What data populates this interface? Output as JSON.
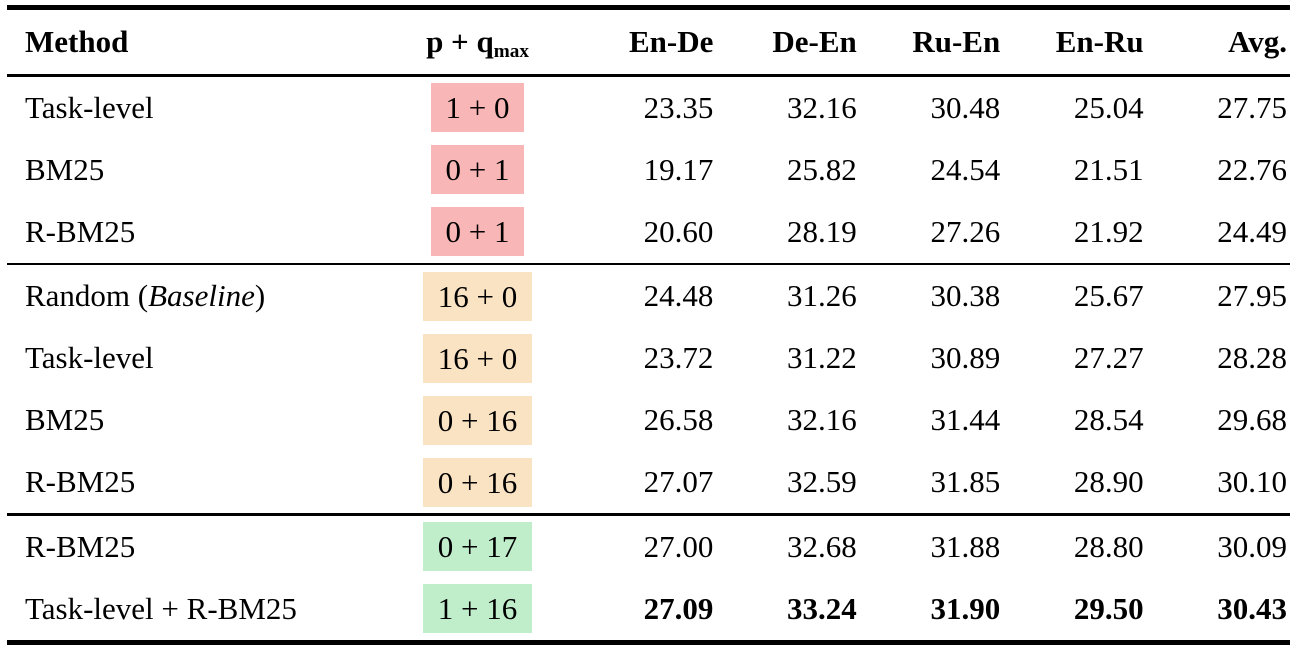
{
  "table": {
    "columns": {
      "method": "Method",
      "pq_main": "p + q",
      "pq_sub": "max",
      "metrics": [
        "En-De",
        "De-En",
        "Ru-En",
        "En-Ru",
        "Avg."
      ]
    },
    "highlight_colors": {
      "pink": "#f8b6b6",
      "orange": "#fae3c3",
      "green": "#c0eecb"
    },
    "rows": [
      {
        "method": "Task-level",
        "pq": "1 + 0",
        "pq_color": "pink",
        "values": [
          "23.35",
          "32.16",
          "30.48",
          "25.04",
          "27.75"
        ],
        "bold": false
      },
      {
        "method": "BM25",
        "pq": "0 + 1",
        "pq_color": "pink",
        "values": [
          "19.17",
          "25.82",
          "24.54",
          "21.51",
          "22.76"
        ],
        "bold": false
      },
      {
        "method": "R-BM25",
        "pq": "0 + 1",
        "pq_color": "pink",
        "values": [
          "20.60",
          "28.19",
          "27.26",
          "21.92",
          "24.49"
        ],
        "bold": false
      },
      {
        "method_prefix": "Random (",
        "method_italic": "Baseline",
        "method_suffix": ")",
        "pq": "16 + 0",
        "pq_color": "orange",
        "values": [
          "24.48",
          "31.26",
          "30.38",
          "25.67",
          "27.95"
        ],
        "bold": false
      },
      {
        "method": "Task-level",
        "pq": "16 + 0",
        "pq_color": "orange",
        "values": [
          "23.72",
          "31.22",
          "30.89",
          "27.27",
          "28.28"
        ],
        "bold": false
      },
      {
        "method": "BM25",
        "pq": "0 + 16",
        "pq_color": "orange",
        "values": [
          "26.58",
          "32.16",
          "31.44",
          "28.54",
          "29.68"
        ],
        "bold": false
      },
      {
        "method": "R-BM25",
        "pq": "0 + 16",
        "pq_color": "orange",
        "values": [
          "27.07",
          "32.59",
          "31.85",
          "28.90",
          "30.10"
        ],
        "bold": false
      },
      {
        "method": "R-BM25",
        "pq": "0 + 17",
        "pq_color": "green",
        "values": [
          "27.00",
          "32.68",
          "31.88",
          "28.80",
          "30.09"
        ],
        "bold": false
      },
      {
        "method": "Task-level + R-BM25",
        "pq": "1 + 16",
        "pq_color": "green",
        "values": [
          "27.09",
          "33.24",
          "31.90",
          "29.50",
          "30.43"
        ],
        "bold": true
      }
    ]
  }
}
